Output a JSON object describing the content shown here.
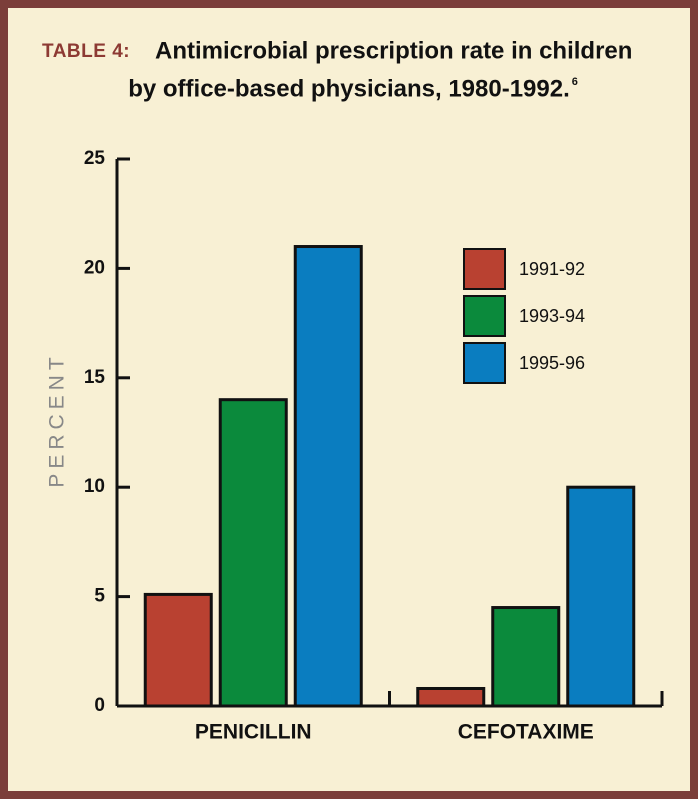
{
  "chart_data": {
    "type": "bar",
    "table_label": "TABLE 4:",
    "title_lines": [
      "Antimicrobial prescription rate in children",
      "by office-based physicians, 1980-1992."
    ],
    "title_note": "6",
    "y_label": "PERCENT",
    "categories": [
      "PENICILLIN",
      "CEFOTAXIME"
    ],
    "series": [
      {
        "name": "1991-92",
        "color": "#b94131",
        "values": [
          5.1,
          0.8
        ]
      },
      {
        "name": "1993-94",
        "color": "#0b8a3c",
        "values": [
          14,
          4.5
        ]
      },
      {
        "name": "1995-96",
        "color": "#0a7dc0",
        "values": [
          21,
          10
        ]
      }
    ],
    "ylim": [
      0,
      25
    ],
    "yticks": [
      0,
      5,
      10,
      15,
      20,
      25
    ]
  }
}
